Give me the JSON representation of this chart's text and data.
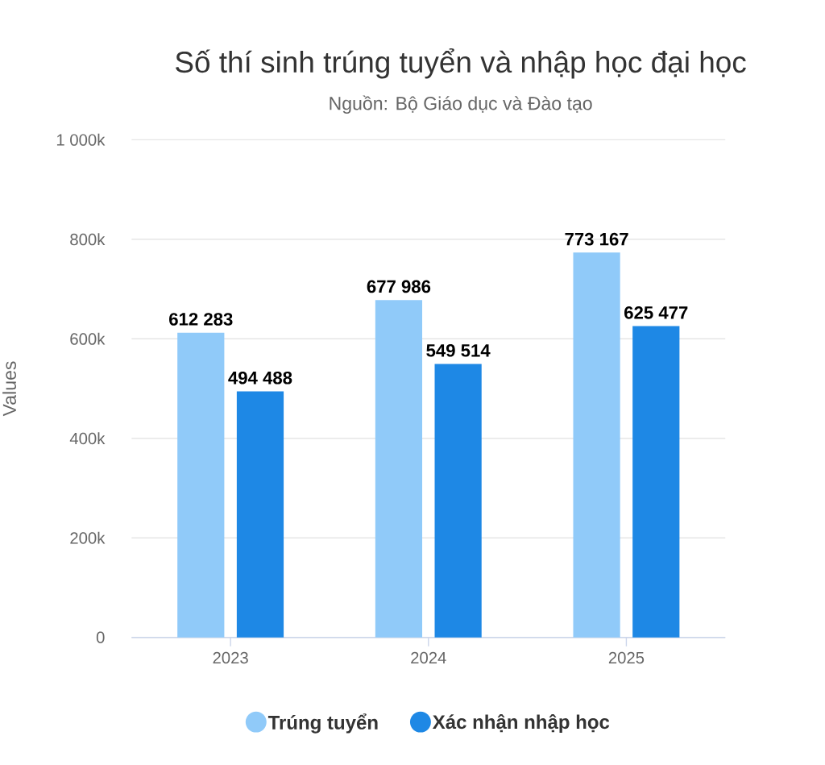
{
  "chart_data": {
    "type": "bar",
    "title": "Số thí sinh trúng tuyển và nhập học đại học",
    "subtitle": "Nguồn: Bộ Giáo dục và Đào tạo",
    "ylabel": "Values",
    "categories": [
      "2023",
      "2024",
      "2025"
    ],
    "series": [
      {
        "name": "Trúng tuyển",
        "color": "#90caf9",
        "values": [
          612283,
          677986,
          773167
        ],
        "value_labels": [
          "612 283",
          "677 986",
          "773 167"
        ]
      },
      {
        "name": "Xác nhận nhập học",
        "color": "#1e88e5",
        "values": [
          494488,
          549514,
          625477
        ],
        "value_labels": [
          "494 488",
          "549 514",
          "625 477"
        ]
      }
    ],
    "ylim": [
      0,
      1000000
    ],
    "yticks": [
      {
        "value": 0,
        "label": "0"
      },
      {
        "value": 200000,
        "label": "200k"
      },
      {
        "value": 400000,
        "label": "400k"
      },
      {
        "value": 600000,
        "label": "600k"
      },
      {
        "value": 800000,
        "label": "800k"
      },
      {
        "value": 1000000,
        "label": "1 000k"
      }
    ],
    "grid": "y",
    "legend": "bottom"
  }
}
